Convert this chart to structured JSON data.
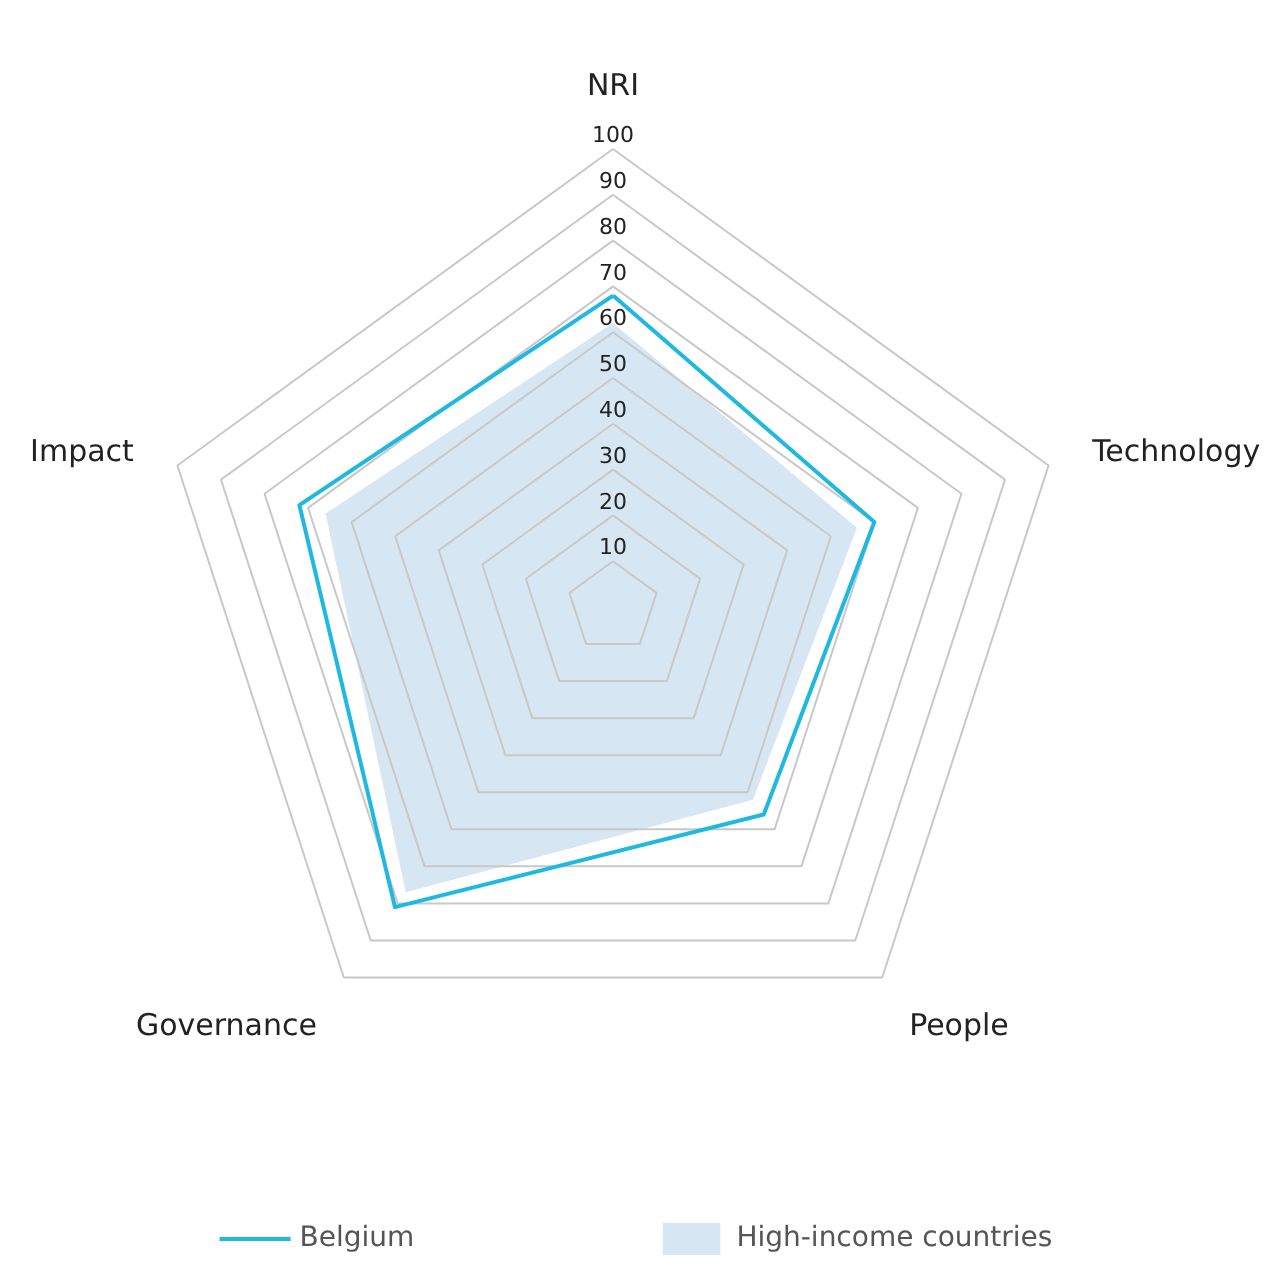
{
  "chart_data": {
    "type": "radar",
    "categories": [
      "NRI",
      "Technology",
      "People",
      "Governance",
      "Impact"
    ],
    "series": [
      {
        "name": "Belgium",
        "color": "#1fb8e0",
        "values": [
          68,
          60,
          56,
          81,
          72
        ]
      },
      {
        "name": "High-income countries",
        "color": "#d6e7f3",
        "type": "area",
        "values": [
          62,
          56,
          52,
          77,
          66
        ]
      }
    ],
    "ylim": [
      0,
      100
    ],
    "yticks": [
      10,
      20,
      30,
      40,
      50,
      60,
      70,
      80,
      90,
      100
    ],
    "grid": true,
    "legend": "bottom"
  }
}
